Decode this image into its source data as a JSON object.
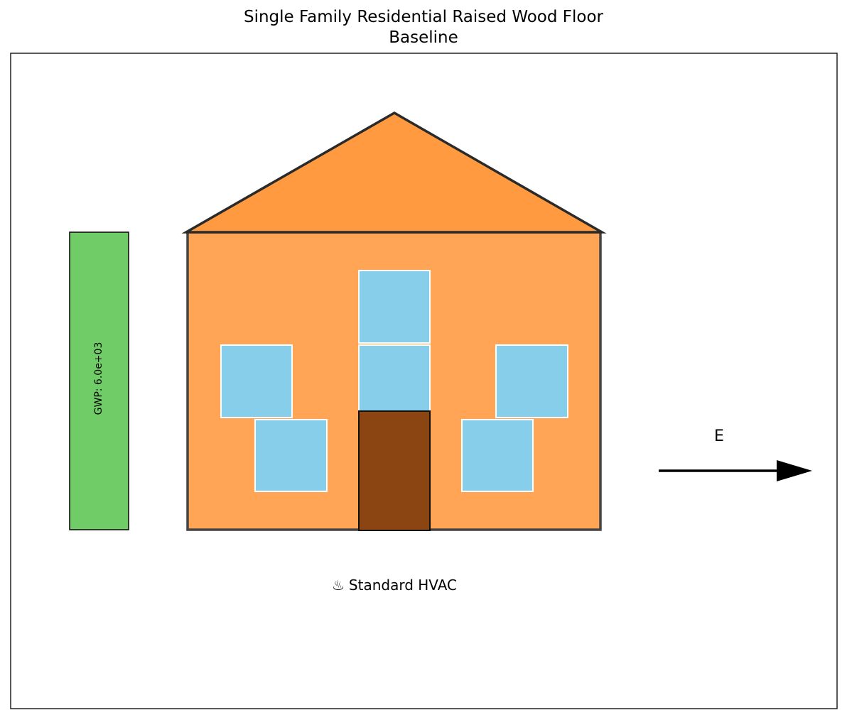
{
  "title": {
    "line1": "Single Family Residential Raised Wood Floor",
    "line2": "Baseline"
  },
  "gwp_bar": {
    "label": "GWP: 6.0e+03",
    "color": "#70cc66"
  },
  "house": {
    "wall_color": "#ffa555",
    "roof_color": "#ff9a40",
    "window_color": "#87ceeb",
    "door_color": "#8b4513",
    "outline_color": "#333333"
  },
  "hvac": {
    "icon": "hot-springs-icon",
    "icon_glyph": "♨",
    "label": "Standard HVAC"
  },
  "orientation": {
    "direction": "E",
    "icon": "arrow-right-icon"
  }
}
